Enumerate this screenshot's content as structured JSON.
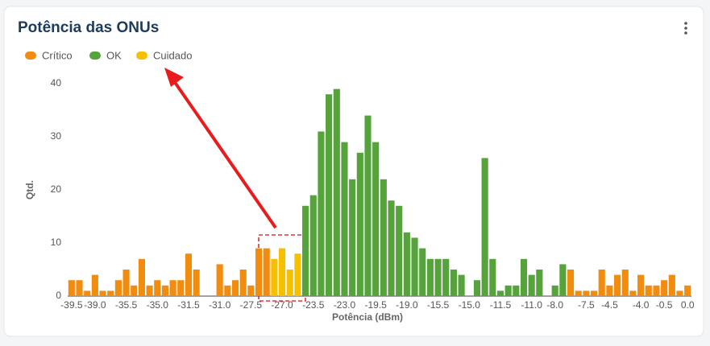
{
  "chart_data": {
    "type": "bar",
    "title": "Potência das ONUs",
    "x_label": "Potência (dBm)",
    "y_label": "Qtd.",
    "categories": [
      "-39.5",
      null,
      null,
      "-39.0",
      null,
      null,
      null,
      "-35.5",
      null,
      null,
      null,
      "-35.0",
      null,
      null,
      null,
      "-31.5",
      null,
      null,
      null,
      "-31.0",
      null,
      null,
      null,
      "-27.5",
      null,
      null,
      null,
      "-27.0",
      null,
      null,
      null,
      "-23.5",
      null,
      null,
      null,
      "-23.0",
      null,
      null,
      null,
      "-19.5",
      null,
      null,
      null,
      "-19.0",
      null,
      null,
      null,
      "-15.5",
      null,
      null,
      null,
      "-15.0",
      null,
      null,
      null,
      "-11.5",
      null,
      null,
      null,
      "-11.0",
      null,
      null,
      "-8.0",
      null,
      null,
      null,
      "-7.5",
      null,
      null,
      "-4.5",
      null,
      null,
      null,
      "-4.0",
      null,
      null,
      "-0.5",
      null,
      null,
      "0.0"
    ],
    "series": [
      {
        "name": "Crítico",
        "color": "#f28c0f",
        "values": [
          3,
          3,
          1,
          4,
          1,
          1,
          3,
          5,
          2,
          7,
          2,
          3,
          2,
          3,
          3,
          8,
          5,
          0,
          0,
          6,
          2,
          3,
          5,
          2,
          9,
          9,
          null,
          null,
          null,
          null,
          null,
          null,
          null,
          null,
          null,
          null,
          null,
          null,
          null,
          null,
          null,
          null,
          null,
          null,
          null,
          null,
          null,
          null,
          null,
          null,
          null,
          null,
          null,
          null,
          null,
          null,
          null,
          null,
          null,
          null,
          null,
          null,
          null,
          null,
          5,
          1,
          1,
          1,
          5,
          2,
          4,
          5,
          1,
          4,
          2,
          2,
          3,
          4,
          1,
          2
        ]
      },
      {
        "name": "OK",
        "color": "#55a33a",
        "values": [
          null,
          null,
          null,
          null,
          null,
          null,
          null,
          null,
          null,
          null,
          null,
          null,
          null,
          null,
          null,
          null,
          null,
          null,
          null,
          null,
          null,
          null,
          null,
          null,
          null,
          null,
          null,
          null,
          null,
          null,
          17,
          19,
          31,
          38,
          39,
          29,
          22,
          27,
          34,
          29,
          22,
          18,
          17,
          12,
          11,
          9,
          7,
          7,
          7,
          5,
          4,
          0,
          3,
          26,
          7,
          1,
          2,
          2,
          7,
          4,
          5,
          0,
          2,
          6,
          null,
          null,
          null,
          null,
          null,
          null,
          null,
          null,
          null,
          null,
          null,
          null,
          null,
          null,
          null,
          null
        ]
      },
      {
        "name": "Cuidado",
        "color": "#f5c000",
        "values": [
          null,
          null,
          null,
          null,
          null,
          null,
          null,
          null,
          null,
          null,
          null,
          null,
          null,
          null,
          null,
          null,
          null,
          null,
          null,
          null,
          null,
          null,
          null,
          null,
          null,
          null,
          7,
          9,
          5,
          8,
          null,
          null,
          null,
          null,
          null,
          null,
          null,
          null,
          null,
          null,
          null,
          null,
          null,
          null,
          null,
          null,
          null,
          null,
          null,
          null,
          null,
          null,
          null,
          null,
          null,
          null,
          null,
          null,
          null,
          null,
          null,
          null,
          null,
          null,
          null,
          null,
          null,
          null,
          null,
          null,
          null,
          null,
          null,
          null,
          null,
          null,
          null,
          null,
          null,
          null
        ]
      }
    ],
    "ylim": [
      0,
      40
    ],
    "yticks": [
      0,
      10,
      20,
      30,
      40
    ],
    "grid": false
  }
}
